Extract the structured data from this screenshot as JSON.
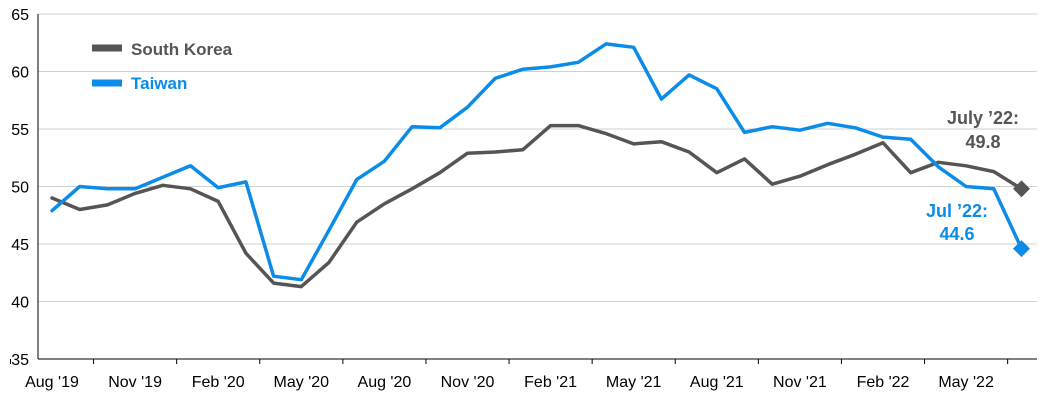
{
  "chart_data": {
    "type": "line",
    "ylim": [
      35,
      65
    ],
    "yticks": [
      35,
      40,
      45,
      50,
      55,
      60,
      65
    ],
    "x_tick_labels": [
      {
        "index": 0,
        "label": "Aug '19"
      },
      {
        "index": 3,
        "label": "Nov '19"
      },
      {
        "index": 6,
        "label": "Feb '20"
      },
      {
        "index": 9,
        "label": "May '20"
      },
      {
        "index": 12,
        "label": "Aug '20"
      },
      {
        "index": 15,
        "label": "Nov '20"
      },
      {
        "index": 18,
        "label": "Feb '21"
      },
      {
        "index": 21,
        "label": "May '21"
      },
      {
        "index": 24,
        "label": "Aug '21"
      },
      {
        "index": 27,
        "label": "Nov '21"
      },
      {
        "index": 30,
        "label": "Feb '22"
      },
      {
        "index": 33,
        "label": "May '22"
      }
    ],
    "categories": [
      "Aug 2019",
      "Sep 2019",
      "Oct 2019",
      "Nov 2019",
      "Dec 2019",
      "Jan 2020",
      "Feb 2020",
      "Mar 2020",
      "Apr 2020",
      "May 2020",
      "Jun 2020",
      "Jul 2020",
      "Aug 2020",
      "Sep 2020",
      "Oct 2020",
      "Nov 2020",
      "Dec 2020",
      "Jan 2021",
      "Feb 2021",
      "Mar 2021",
      "Apr 2021",
      "May 2021",
      "Jun 2021",
      "Jul 2021",
      "Aug 2021",
      "Sep 2021",
      "Oct 2021",
      "Nov 2021",
      "Dec 2021",
      "Jan 2022",
      "Feb 2022",
      "Mar 2022",
      "Apr 2022",
      "May 2022",
      "Jun 2022",
      "Jul 2022"
    ],
    "series": [
      {
        "name": "South Korea",
        "color": "#555555",
        "values": [
          49.0,
          48.0,
          48.4,
          49.4,
          50.1,
          49.8,
          48.7,
          44.2,
          41.6,
          41.3,
          43.4,
          46.9,
          48.5,
          49.8,
          51.2,
          52.9,
          53.0,
          53.2,
          55.3,
          55.3,
          54.6,
          53.7,
          53.9,
          53.0,
          51.2,
          52.4,
          50.2,
          50.9,
          51.9,
          52.8,
          53.8,
          51.2,
          52.1,
          51.8,
          51.3,
          49.8
        ],
        "annotation": "July ’22:\n49.8"
      },
      {
        "name": "Taiwan",
        "color": "#0c8ce9",
        "values": [
          47.9,
          50.0,
          49.8,
          49.8,
          50.8,
          51.8,
          49.9,
          50.4,
          42.2,
          41.9,
          46.2,
          50.6,
          52.2,
          55.2,
          55.1,
          56.9,
          59.4,
          60.2,
          60.4,
          60.8,
          62.4,
          62.1,
          57.6,
          59.7,
          58.5,
          54.7,
          55.2,
          54.9,
          55.5,
          55.1,
          54.3,
          54.1,
          51.7,
          50.0,
          49.8,
          44.6
        ],
        "annotation": "Jul ’22:\n44.6"
      }
    ],
    "legend": "top-left",
    "grid": "horizontal"
  }
}
